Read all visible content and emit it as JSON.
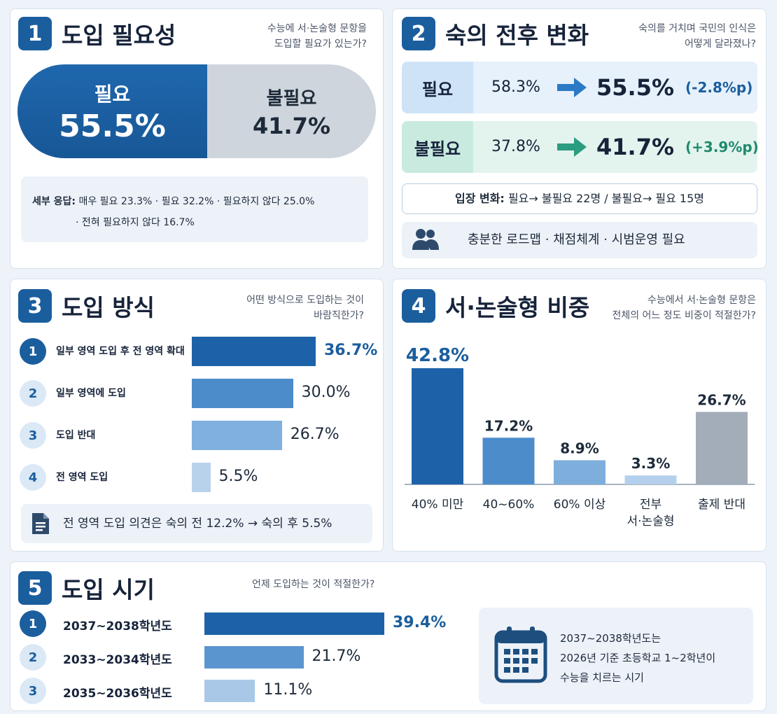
{
  "card1": {
    "number": "1",
    "title": "도입 필요성",
    "question_line1": "수능에 서·논술형 문항을",
    "question_line2": "도입할 필요가 있는가?",
    "need_label": "필요",
    "need_value": "55.5%",
    "unneeded_label": "불필요",
    "unneeded_value": "41.7%",
    "detail_heading": "세부 응답:",
    "detail_line1": "매우 필요 23.3% · 필요 32.2% · 필요하지 않다 25.0%",
    "detail_line2": "· 전혀 필요하지 않다 16.7%"
  },
  "card2": {
    "number": "2",
    "title": "숙의 전후 변화",
    "question_line1": "숙의를 거치며 국민의 인식은",
    "question_line2": "어떻게 달라졌나?",
    "rows": [
      {
        "tag": "필요",
        "before": "58.3%",
        "after": "55.5%",
        "change": "(-2.8%p)"
      },
      {
        "tag": "불필요",
        "before": "37.8%",
        "after": "41.7%",
        "change": "(+3.9%p)"
      }
    ],
    "shift_heading": "입장 변화:",
    "shift_text": "필요→ 불필요 22명 / 불필요→ 필요 15명",
    "note_text": "충분한 로드맵 · 채점체계 · 시범운영 필요",
    "colors": {
      "need_tag": "#cfe3f7",
      "need_row": "#e6f1fb",
      "unneeded_tag": "#c9eadf",
      "unneeded_row": "#e3f4ee",
      "minus": "#1b5e9e",
      "plus": "#1f8a6e"
    }
  },
  "card3": {
    "number": "3",
    "title": "도입 방식",
    "question_line1": "어떤 방식으로 도입하는 것이",
    "question_line2": "바람직한가?",
    "note_text": "전 영역 도입 의견은 숙의 전 12.2% → 숙의 후 5.5%"
  },
  "card4": {
    "number": "4",
    "title": "서·논술형 비중",
    "question_line1": "수능에서 서·논술형 문항은",
    "question_line2": "전체의 어느 정도 비중이 적절한가?"
  },
  "card5": {
    "number": "5",
    "title": "도입 시기",
    "question": "언제 도입하는 것이 적절한가?",
    "info_line1": "2037~2038학년도는",
    "info_line2": "2026년 기준 초등학교 1~2학년이",
    "info_line3": "수능을 치르는 시기"
  },
  "chart_data": [
    {
      "type": "bar",
      "orientation": "horizontal",
      "categories": [
        "일부 영역 도입 후 전 영역 확대",
        "일부 영역에 도입",
        "도입 반대",
        "전 영역 도입"
      ],
      "ranks": [
        "1",
        "2",
        "3",
        "4"
      ],
      "values": [
        36.7,
        30.0,
        26.7,
        5.5
      ],
      "labels": [
        "36.7%",
        "30.0%",
        "26.7%",
        "5.5%"
      ],
      "colors": [
        "#1d62a8",
        "#4d8ccb",
        "#80b0de",
        "#b9d2ec"
      ],
      "xlim": [
        0,
        36.7
      ]
    },
    {
      "type": "bar",
      "categories": [
        "40% 미만",
        "40~60%",
        "60% 이상",
        "전부\n서·논술형",
        "출제 반대"
      ],
      "values": [
        42.8,
        17.2,
        8.9,
        3.3,
        26.7
      ],
      "labels": [
        "42.8%",
        "17.2%",
        "8.9%",
        "3.3%",
        "26.7%"
      ],
      "colors": [
        "#1d62a8",
        "#4d8ccb",
        "#7eaedc",
        "#b4d0ec",
        "#a3adb9"
      ],
      "ylim": [
        0,
        42.8
      ]
    },
    {
      "type": "bar",
      "orientation": "horizontal",
      "categories": [
        "2037~2038학년도",
        "2033~2034학년도",
        "2035~2036학년도"
      ],
      "ranks": [
        "1",
        "2",
        "3"
      ],
      "values": [
        39.4,
        21.7,
        11.1
      ],
      "labels": [
        "39.4%",
        "21.7%",
        "11.1%"
      ],
      "colors": [
        "#1d62a8",
        "#5a95cf",
        "#a9c8e8"
      ],
      "xlim": [
        0,
        39.4
      ]
    }
  ]
}
